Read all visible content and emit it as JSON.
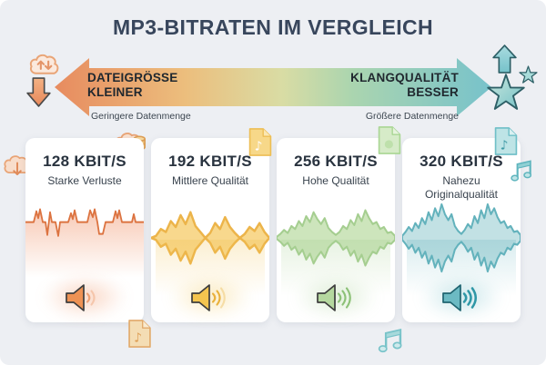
{
  "title": "MP3-BITRATEN IM VERGLEICH",
  "arrow": {
    "left_title_1": "DATEIGRÖSSE",
    "left_title_2": "KLEINER",
    "left_sub": "Geringere Datenmenge",
    "right_title_1": "KLANGQUALITÄT",
    "right_title_2": "BESSER",
    "right_sub": "Größere Datenmenge",
    "gradient": [
      "#E78B5F",
      "#ECBE7D",
      "#D9DCA4",
      "#ABD5AF",
      "#77C2CB"
    ]
  },
  "cards": [
    {
      "bitrate": "128 KBIT/S",
      "quality": "Starke Verluste",
      "accent": "#E2834F",
      "speaker_arcs": 1,
      "corner_icon": "cloud-database-icon",
      "waveform": {
        "type": "clipped-line",
        "points": [
          [
            0,
            0
          ],
          [
            9,
            0
          ],
          [
            12,
            11
          ],
          [
            14,
            4
          ],
          [
            16,
            13
          ],
          [
            19,
            0
          ],
          [
            22,
            0
          ],
          [
            24,
            -13
          ],
          [
            27,
            10
          ],
          [
            29,
            0
          ],
          [
            33,
            0
          ],
          [
            36,
            -14
          ],
          [
            38,
            0
          ],
          [
            47,
            0
          ],
          [
            50,
            9
          ],
          [
            52,
            3
          ],
          [
            54,
            12
          ],
          [
            57,
            0
          ],
          [
            60,
            0
          ],
          [
            68,
            0
          ],
          [
            71,
            12
          ],
          [
            74,
            5
          ],
          [
            76,
            13
          ],
          [
            79,
            0
          ],
          [
            81,
            -12
          ],
          [
            85,
            -12
          ],
          [
            88,
            0
          ],
          [
            96,
            0
          ],
          [
            99,
            11
          ],
          [
            101,
            4
          ],
          [
            103,
            12
          ],
          [
            106,
            0
          ],
          [
            109,
            0
          ],
          [
            117,
            0
          ],
          [
            119,
            8
          ],
          [
            121,
            0
          ],
          [
            130,
            0
          ]
        ]
      }
    },
    {
      "bitrate": "192 KBIT/S",
      "quality": "Mittlere Qualität",
      "accent": "#F2C14E",
      "speaker_arcs": 2,
      "corner_icon": "music-file-icon",
      "waveform": {
        "type": "mirrored",
        "amplitudes": [
          0,
          2,
          9,
          6,
          17,
          11,
          23,
          14,
          26,
          12,
          6,
          0,
          5,
          15,
          9,
          21,
          11,
          5,
          0,
          4,
          11,
          7,
          15,
          6,
          0
        ]
      }
    },
    {
      "bitrate": "256 KBIT/S",
      "quality": "Hohe Qualität",
      "accent": "#AED49A",
      "speaker_arcs": 3,
      "corner_icon": "music-file-icon",
      "waveform": {
        "type": "mirrored",
        "amplitudes": [
          1,
          4,
          8,
          5,
          12,
          9,
          17,
          12,
          22,
          16,
          26,
          19,
          14,
          20,
          10,
          6,
          3,
          6,
          12,
          9,
          18,
          13,
          24,
          17,
          28,
          20,
          14,
          16,
          9,
          11,
          5,
          6,
          2
        ]
      }
    },
    {
      "bitrate": "320 KBIT/S",
      "quality": "Nahezu Originalqualität",
      "accent": "#64B7C0",
      "speaker_arcs": 3,
      "corner_icon": "music-file-icon",
      "waveform": {
        "type": "mirrored",
        "amplitudes": [
          2,
          6,
          11,
          7,
          15,
          10,
          20,
          14,
          26,
          18,
          30,
          22,
          34,
          24,
          18,
          24,
          12,
          7,
          4,
          8,
          14,
          10,
          22,
          15,
          28,
          20,
          34,
          24,
          30,
          21,
          15,
          17,
          10,
          12,
          6,
          7,
          3
        ]
      }
    }
  ],
  "icons": {
    "cloud-sync-icon": "#E9A476",
    "down-block-arrow-icon": "#EC9763",
    "up-block-arrow-icon": "#7FC6CD",
    "star-big-icon": "#74C1C6",
    "star-small-icon": "#8FD0D2",
    "cloud-download-icon": "#E9A476",
    "cloud-database-icon": "#E9A476",
    "music-file-yellow-icon": "#F2C14E",
    "music-file-green-icon": "#A9D694",
    "music-file-teal-icon": "#6FBFC7",
    "music-file-orange-icon": "#E2AA6B",
    "music-note-teal-icon": "#5FB5BE"
  }
}
